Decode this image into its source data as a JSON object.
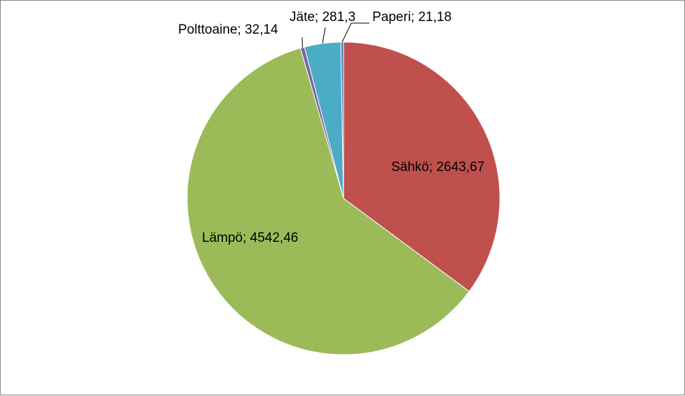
{
  "chart_data": {
    "type": "pie",
    "title": "",
    "legend": "none",
    "slices": [
      {
        "name": "Sähkö",
        "value": 2643.67,
        "label": "Sähkö; 2643,67",
        "color": "#C0504D"
      },
      {
        "name": "Lämpö",
        "value": 4542.46,
        "label": "Lämpö; 4542,46",
        "color": "#9BBB59"
      },
      {
        "name": "Polttoaine",
        "value": 32.14,
        "label": "Polttoaine; 32,14",
        "color": "#8064A2"
      },
      {
        "name": "Jäte",
        "value": 281.3,
        "label": "Jäte; 281,3",
        "color": "#4BACC6"
      },
      {
        "name": "Paperi",
        "value": 21.18,
        "label": "Paperi; 21,18",
        "color": "#4F81BD"
      }
    ]
  }
}
